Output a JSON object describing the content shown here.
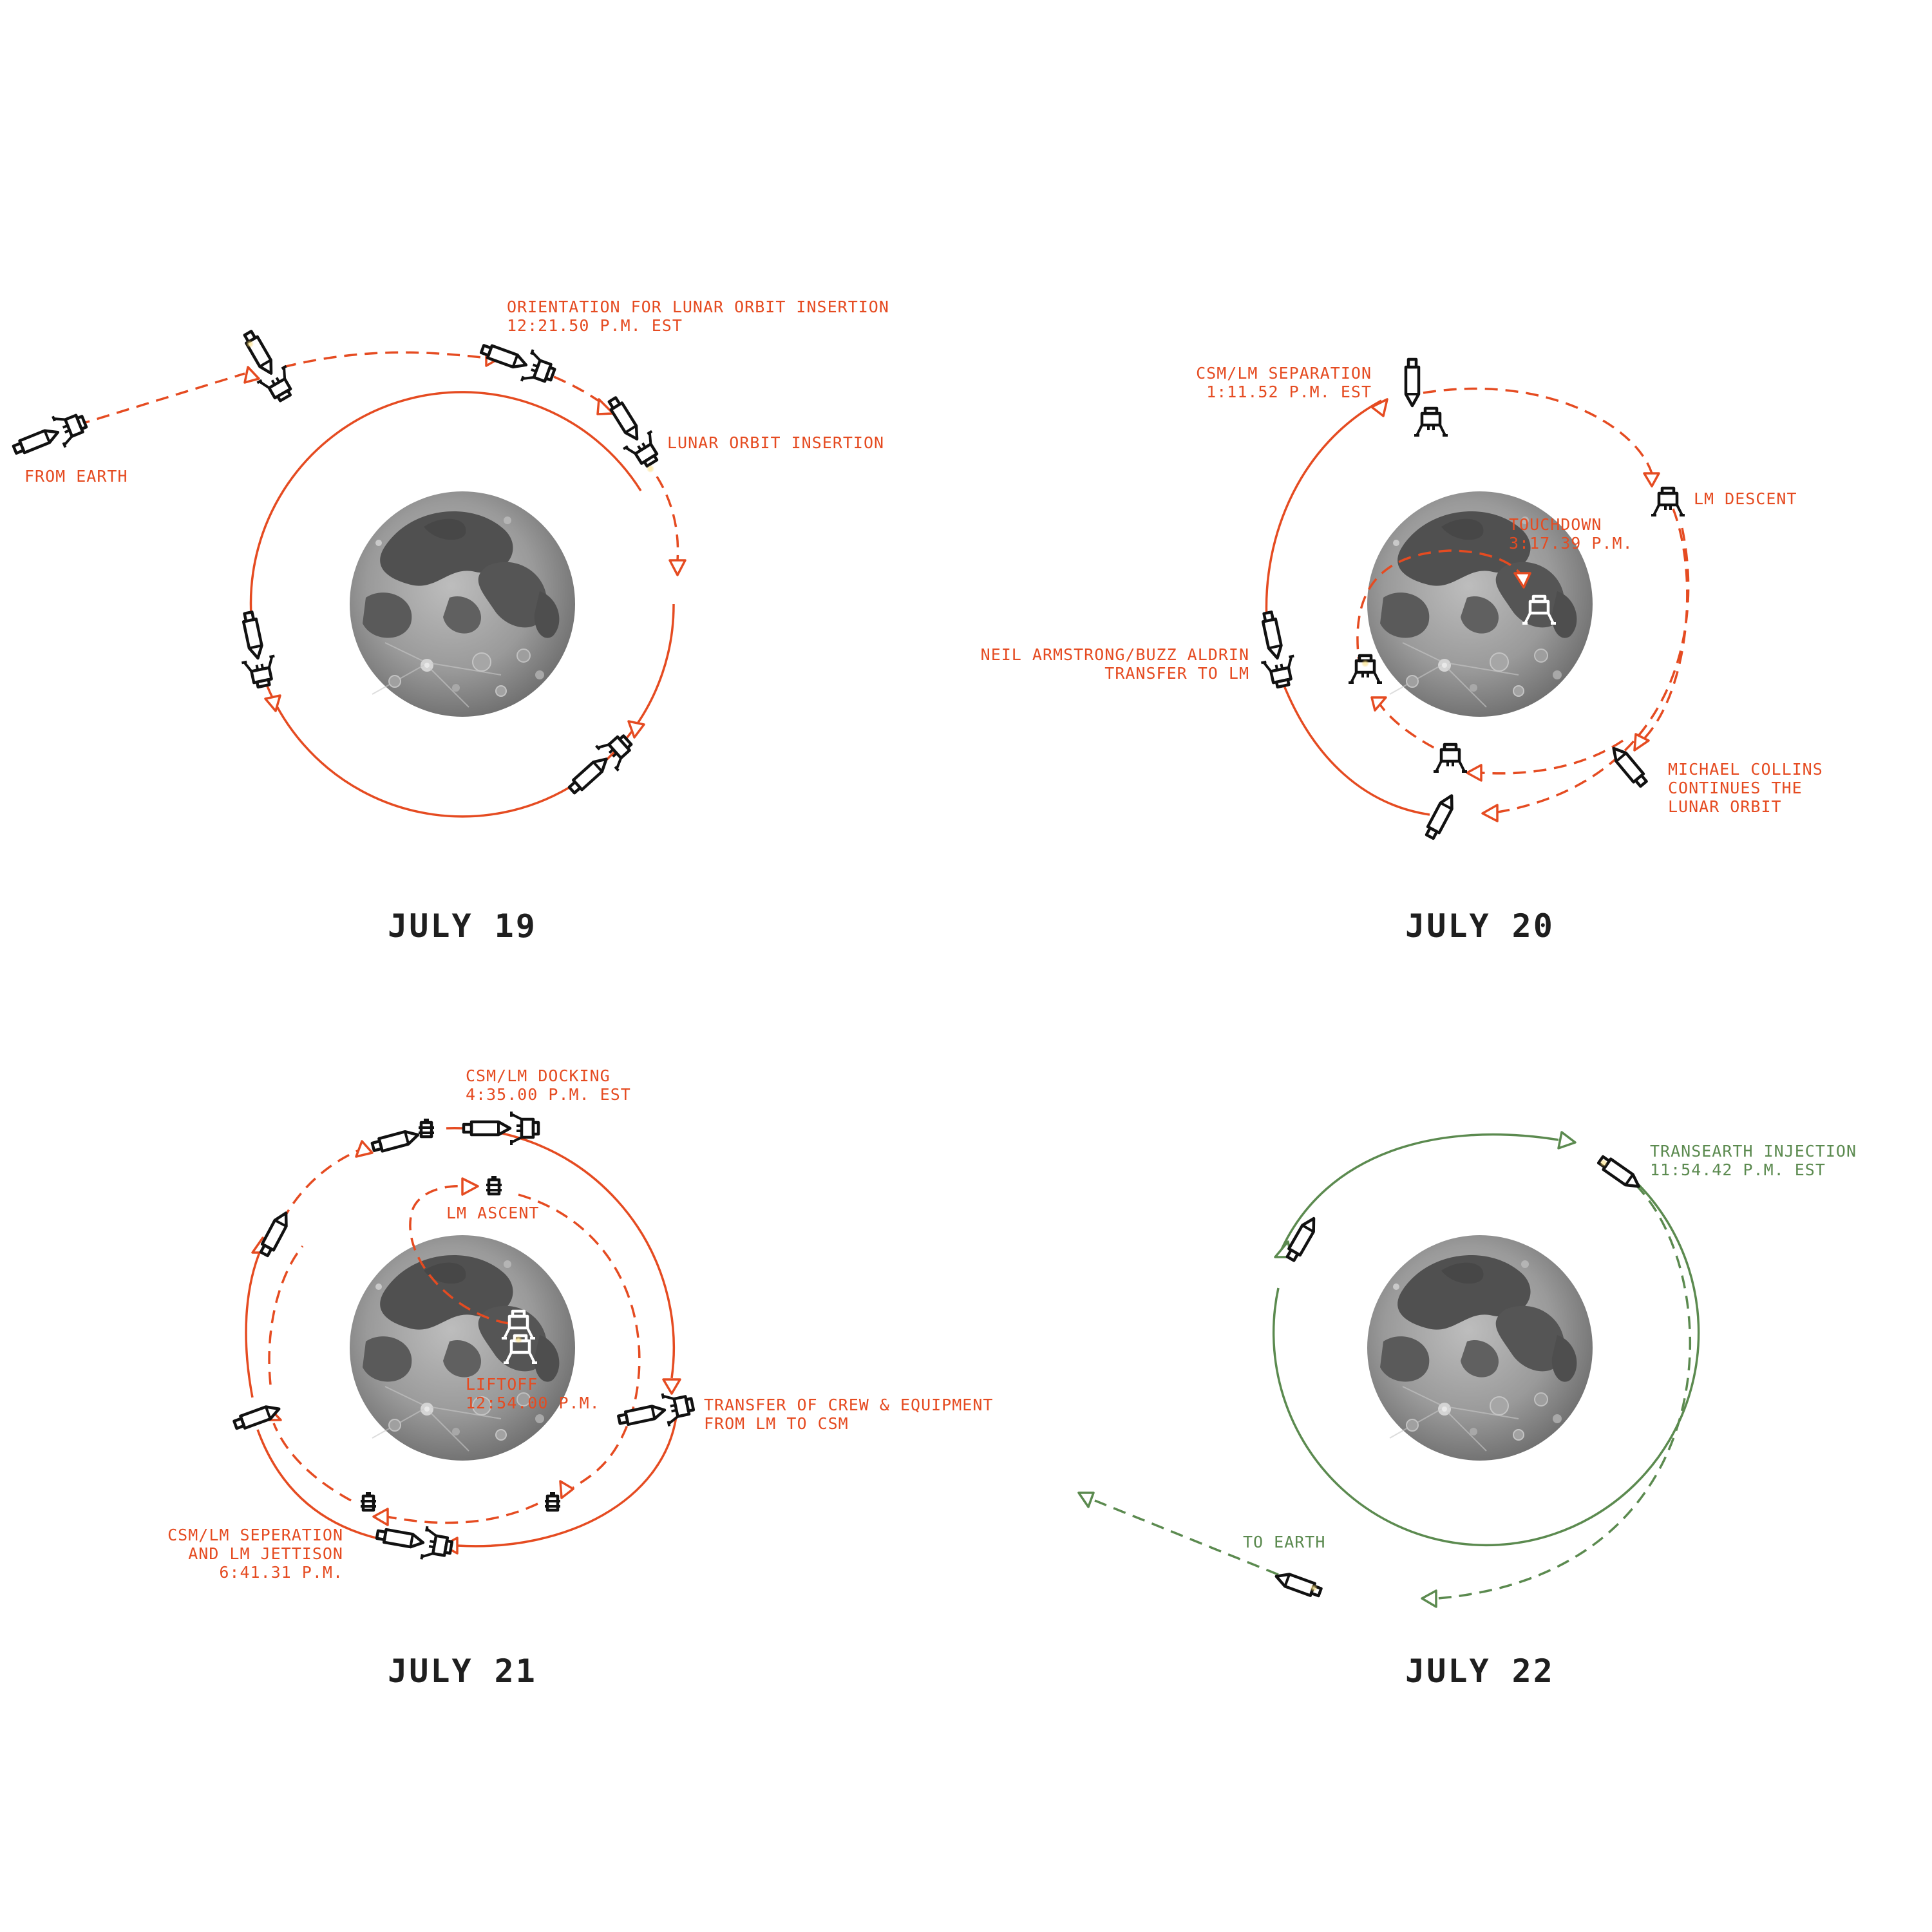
{
  "colors": {
    "primary": "#e54b21",
    "secondary": "#5b8a4f",
    "text_dark": "#1f1f1f",
    "spacecraft": "#111111",
    "engine_glow": "#f5c542",
    "moon_light": "#b4b4b4",
    "moon_dark": "#4c4c4c"
  },
  "panels": [
    {
      "day": "JULY 19",
      "labels": {
        "from_earth": "FROM EARTH",
        "orientation_line1": "ORIENTATION FOR LUNAR ORBIT INSERTION",
        "orientation_line2": "12:21.50 P.M. EST",
        "insertion": "LUNAR ORBIT INSERTION"
      }
    },
    {
      "day": "JULY 20",
      "labels": {
        "separation_line1": "CSM/LM SEPARATION",
        "separation_line2": "1:11.52 P.M. EST",
        "descent": "LM DESCENT",
        "touchdown_line1": "TOUCHDOWN",
        "touchdown_line2": "3:17.39 P.M.",
        "transfer_line1": "NEIL ARMSTRONG/BUZZ ALDRIN",
        "transfer_line2": "TRANSFER TO LM",
        "collins_line1": "MICHAEL COLLINS",
        "collins_line2": "CONTINUES THE",
        "collins_line3": "LUNAR ORBIT"
      }
    },
    {
      "day": "JULY 21",
      "labels": {
        "docking_line1": "CSM/LM DOCKING",
        "docking_line2": "4:35.00 P.M. EST",
        "ascent": "LM ASCENT",
        "liftoff_line1": "LIFTOFF",
        "liftoff_line2": "12:54.00 P.M.",
        "crew_line1": "TRANSFER OF CREW & EQUIPMENT",
        "crew_line2": "FROM LM TO CSM",
        "jettison_line1": "CSM/LM SEPERATION",
        "jettison_line2": "AND LM JETTISON",
        "jettison_line3": "6:41.31 P.M."
      }
    },
    {
      "day": "JULY 22",
      "labels": {
        "injection_line1": "TRANSEARTH INJECTION",
        "injection_line2": "11:54.42 P.M. EST",
        "to_earth": "TO EARTH"
      }
    }
  ]
}
